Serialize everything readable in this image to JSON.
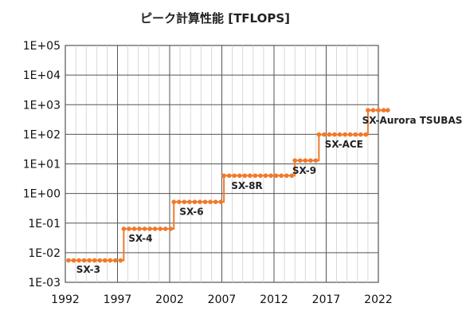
{
  "chart_data": {
    "type": "line",
    "title": "ピーク計算性能 [TFLOPS]",
    "xlabel": "",
    "ylabel": "",
    "x_ticks": [
      "1992",
      "1997",
      "2002",
      "2007",
      "2012",
      "2017",
      "2022"
    ],
    "xlim": [
      1992,
      2022
    ],
    "y_ticks": [
      "1E+05",
      "1E+04",
      "1E+03",
      "1E+02",
      "1E+01",
      "1E+00",
      "1E-01",
      "1E-02",
      "1E-03"
    ],
    "ylim": [
      0.001,
      100000
    ],
    "y_scale": "log",
    "grid": true,
    "series_color": "#F07A2A",
    "series": [
      {
        "values": [
          {
            "x": 1992.3,
            "y": 0.0055
          },
          {
            "x": 1992.8,
            "y": 0.0055
          },
          {
            "x": 1993.3,
            "y": 0.0055
          },
          {
            "x": 1993.8,
            "y": 0.0055
          },
          {
            "x": 1994.3,
            "y": 0.0055
          },
          {
            "x": 1994.8,
            "y": 0.0055
          },
          {
            "x": 1995.3,
            "y": 0.0055
          },
          {
            "x": 1995.8,
            "y": 0.0055
          },
          {
            "x": 1996.3,
            "y": 0.0055
          },
          {
            "x": 1996.8,
            "y": 0.0055
          },
          {
            "x": 1997.3,
            "y": 0.0055
          },
          {
            "x": 1997.6,
            "y": 0.064
          },
          {
            "x": 1998.1,
            "y": 0.064
          },
          {
            "x": 1998.6,
            "y": 0.064
          },
          {
            "x": 1999.1,
            "y": 0.064
          },
          {
            "x": 1999.6,
            "y": 0.064
          },
          {
            "x": 2000.1,
            "y": 0.064
          },
          {
            "x": 2000.6,
            "y": 0.064
          },
          {
            "x": 2001.1,
            "y": 0.064
          },
          {
            "x": 2001.6,
            "y": 0.064
          },
          {
            "x": 2002.1,
            "y": 0.064
          },
          {
            "x": 2002.4,
            "y": 0.52
          },
          {
            "x": 2002.9,
            "y": 0.52
          },
          {
            "x": 2003.4,
            "y": 0.52
          },
          {
            "x": 2003.9,
            "y": 0.52
          },
          {
            "x": 2004.4,
            "y": 0.52
          },
          {
            "x": 2004.9,
            "y": 0.52
          },
          {
            "x": 2005.4,
            "y": 0.52
          },
          {
            "x": 2005.9,
            "y": 0.52
          },
          {
            "x": 2006.4,
            "y": 0.52
          },
          {
            "x": 2006.9,
            "y": 0.52
          },
          {
            "x": 2007.2,
            "y": 4.0
          },
          {
            "x": 2007.7,
            "y": 4.0
          },
          {
            "x": 2008.2,
            "y": 4.0
          },
          {
            "x": 2008.7,
            "y": 4.0
          },
          {
            "x": 2009.2,
            "y": 4.0
          },
          {
            "x": 2009.7,
            "y": 4.0
          },
          {
            "x": 2010.2,
            "y": 4.0
          },
          {
            "x": 2010.7,
            "y": 4.0
          },
          {
            "x": 2011.2,
            "y": 4.0
          },
          {
            "x": 2011.7,
            "y": 4.0
          },
          {
            "x": 2012.2,
            "y": 4.0
          },
          {
            "x": 2012.7,
            "y": 4.0
          },
          {
            "x": 2013.2,
            "y": 4.0
          },
          {
            "x": 2013.7,
            "y": 4.0
          },
          {
            "x": 2014.0,
            "y": 13
          },
          {
            "x": 2014.5,
            "y": 13
          },
          {
            "x": 2015.0,
            "y": 13
          },
          {
            "x": 2015.5,
            "y": 13
          },
          {
            "x": 2016.0,
            "y": 13
          },
          {
            "x": 2016.3,
            "y": 98
          },
          {
            "x": 2016.8,
            "y": 98
          },
          {
            "x": 2017.3,
            "y": 98
          },
          {
            "x": 2017.8,
            "y": 98
          },
          {
            "x": 2018.3,
            "y": 98
          },
          {
            "x": 2018.8,
            "y": 98
          },
          {
            "x": 2019.3,
            "y": 98
          },
          {
            "x": 2019.8,
            "y": 98
          },
          {
            "x": 2020.3,
            "y": 98
          },
          {
            "x": 2020.8,
            "y": 98
          },
          {
            "x": 2021.0,
            "y": 650
          },
          {
            "x": 2021.5,
            "y": 650
          },
          {
            "x": 2022.0,
            "y": 650
          },
          {
            "x": 2022.5,
            "y": 650
          },
          {
            "x": 2022.9,
            "y": 650
          }
        ]
      }
    ],
    "annotations": [
      {
        "text": "SX-3",
        "x": 1994.2,
        "y": 0.0027
      },
      {
        "text": "SX-4",
        "x": 1999.2,
        "y": 0.03
      },
      {
        "text": "SX-6",
        "x": 2004.1,
        "y": 0.24
      },
      {
        "text": "SX-8R",
        "x": 2009.4,
        "y": 1.8
      },
      {
        "text": "SX-9",
        "x": 2014.9,
        "y": 5.9
      },
      {
        "text": "SX-ACE",
        "x": 2018.7,
        "y": 45
      },
      {
        "text": "SX-Aurora TSUBASA",
        "x": 2025.6,
        "y": 290
      }
    ]
  }
}
